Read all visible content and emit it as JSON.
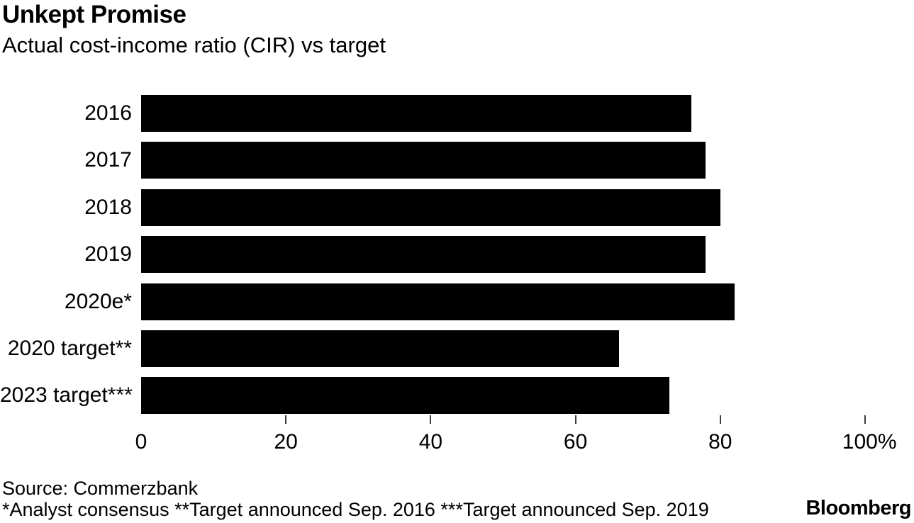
{
  "header": {
    "title": "Unkept Promise",
    "subtitle": "Actual cost-income ratio (CIR) vs target"
  },
  "chart_data": {
    "type": "bar",
    "orientation": "horizontal",
    "title": "Unkept Promise",
    "subtitle": "Actual cost-income ratio (CIR) vs target",
    "categories": [
      "2016",
      "2017",
      "2018",
      "2019",
      "2020e*",
      "2020 target**",
      "2023 target***"
    ],
    "values": [
      76,
      78,
      80,
      78,
      82,
      66,
      73
    ],
    "xlabel": "",
    "ylabel": "",
    "xlim": [
      0,
      100
    ],
    "x_ticks": [
      {
        "value": 0,
        "label": "0"
      },
      {
        "value": 20,
        "label": "20"
      },
      {
        "value": 40,
        "label": "40"
      },
      {
        "value": 60,
        "label": "60"
      },
      {
        "value": 80,
        "label": "80"
      },
      {
        "value": 100,
        "label": "100%"
      }
    ],
    "grid": false,
    "legend": "none",
    "colors": {
      "bar": "#000000",
      "background": "#ffffff",
      "tick": "#3a3a3a"
    }
  },
  "footer": {
    "source": "Source: Commerzbank",
    "footnote": "*Analyst consensus **Target announced Sep. 2016 ***Target announced Sep. 2019",
    "brand": "Bloomberg"
  }
}
